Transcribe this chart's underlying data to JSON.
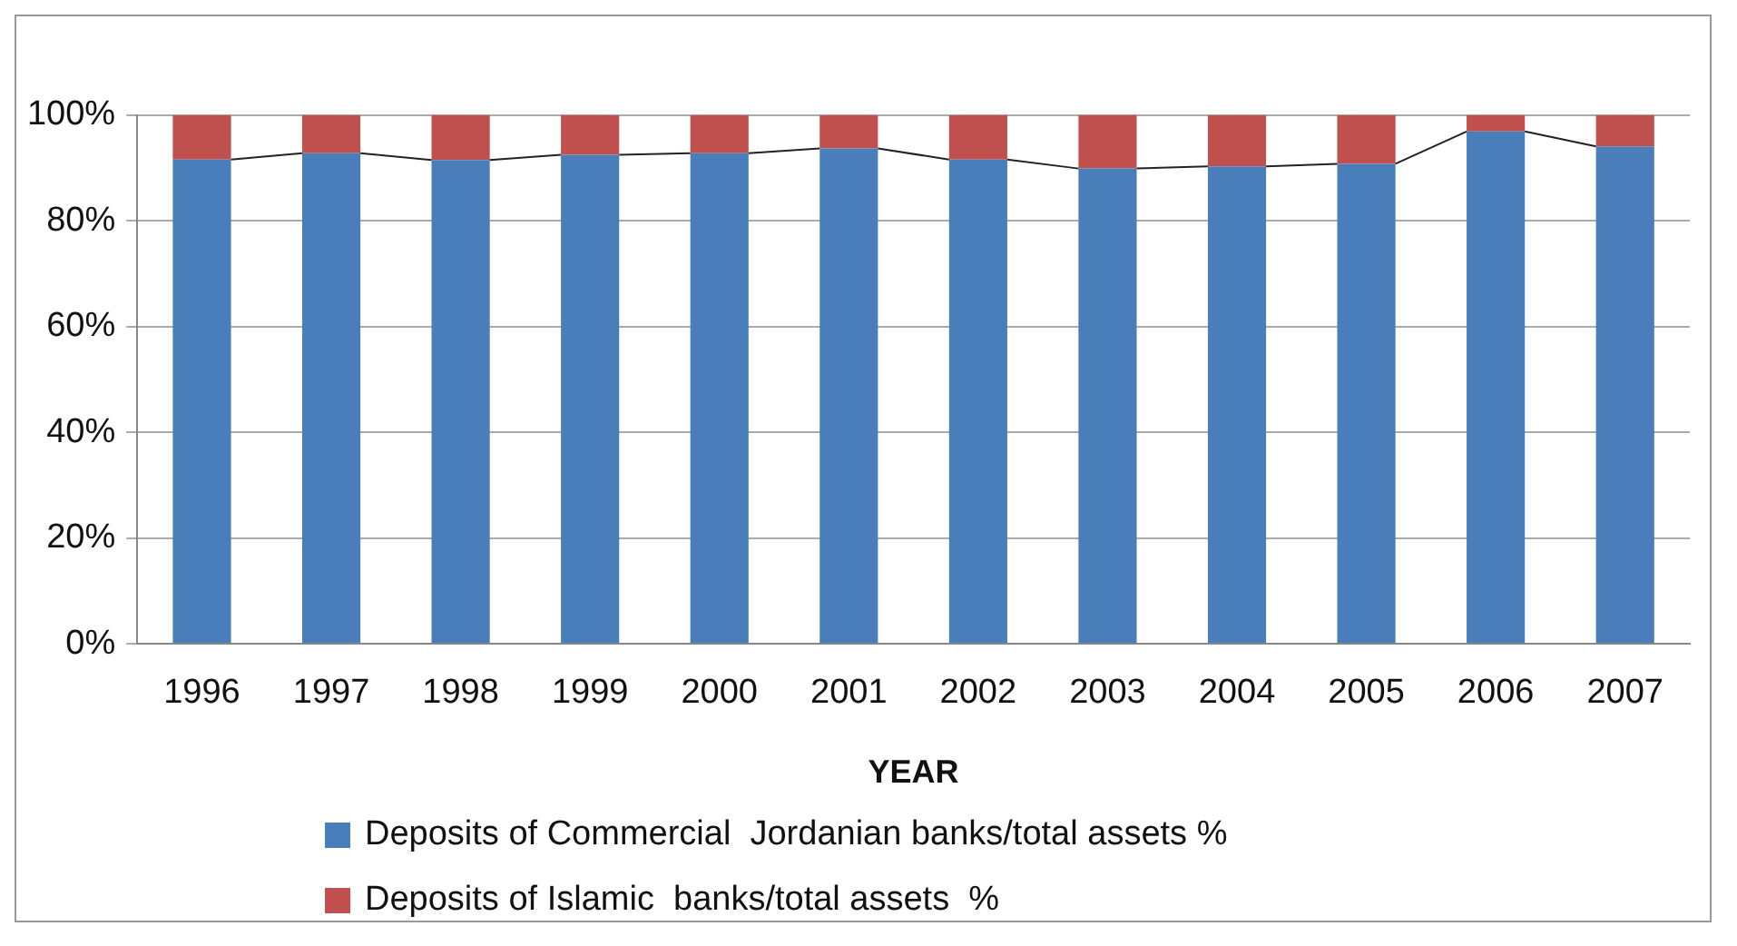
{
  "chart_data": {
    "type": "bar",
    "stacked": true,
    "xlabel": "YEAR",
    "categories": [
      "1996",
      "1997",
      "1998",
      "1999",
      "2000",
      "2001",
      "2002",
      "2003",
      "2004",
      "2005",
      "2006",
      "2007"
    ],
    "series": [
      {
        "name": "Deposits of Commercial  Jordanian banks/total assets %",
        "color": "#4a7ebb",
        "values": [
          91.6,
          92.8,
          91.5,
          92.5,
          92.8,
          93.7,
          91.6,
          89.9,
          90.3,
          90.8,
          96.9,
          94.1
        ]
      },
      {
        "name": "Deposits of Islamic  banks/total assets  %",
        "color": "#c0504d",
        "values": [
          8.4,
          7.2,
          8.5,
          7.5,
          7.2,
          6.3,
          8.4,
          10.1,
          9.7,
          9.2,
          3.1,
          5.9
        ]
      }
    ],
    "ylim": [
      0,
      100
    ],
    "yticks": [
      {
        "value": 0,
        "label": "0%"
      },
      {
        "value": 20,
        "label": "20%"
      },
      {
        "value": 40,
        "label": "40%"
      },
      {
        "value": 60,
        "label": "60%"
      },
      {
        "value": 80,
        "label": "80%"
      },
      {
        "value": 100,
        "label": "100%"
      }
    ],
    "grid": "y",
    "legend": "bottom"
  }
}
